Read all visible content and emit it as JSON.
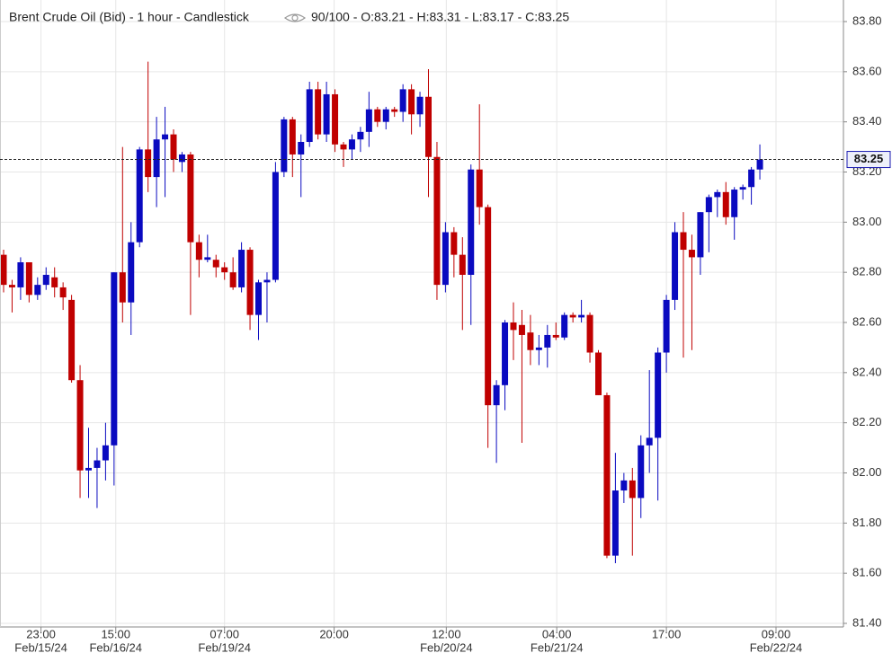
{
  "chart_data": {
    "type": "candlestick",
    "title": "Brent Crude Oil (Bid) - 1 hour - Candlestick",
    "subtitle": "90/100 - O:83.21 - H:83.31 - L:83.17 - C:83.25",
    "up_color": "#0a0ac0",
    "down_color": "#c00000",
    "grid": true,
    "open": [
      82.87,
      82.75,
      82.74,
      82.84,
      82.71,
      82.75,
      82.78,
      82.74,
      82.69,
      82.37,
      82.01,
      82.02,
      82.05,
      82.11,
      82.8,
      82.68,
      82.92,
      83.29,
      83.18,
      83.33,
      83.35,
      83.24,
      83.27,
      82.92,
      82.85,
      82.85,
      82.82,
      82.8,
      82.74,
      82.89,
      82.63,
      82.76,
      82.77,
      83.2,
      83.41,
      83.27,
      83.32,
      83.53,
      83.35,
      83.51,
      83.31,
      83.29,
      83.33,
      83.36,
      83.45,
      83.4,
      83.45,
      83.44,
      83.53,
      83.43,
      83.5,
      83.26,
      82.75,
      82.96,
      82.87,
      82.79,
      83.21,
      83.06,
      82.27,
      82.35,
      82.6,
      82.59,
      82.56,
      82.49,
      82.5,
      82.55,
      82.54,
      82.63,
      82.62,
      82.63,
      82.48,
      82.31,
      81.67,
      81.93,
      81.97,
      81.9,
      82.11,
      82.14,
      82.48,
      82.69,
      82.96,
      82.89,
      82.86,
      83.04,
      83.1,
      83.12,
      83.02,
      83.13,
      83.14,
      83.21
    ],
    "high": [
      82.89,
      82.77,
      82.86,
      82.84,
      82.78,
      82.82,
      82.82,
      82.76,
      82.71,
      82.43,
      82.18,
      82.1,
      82.2,
      82.8,
      83.3,
      83.0,
      83.3,
      83.64,
      83.42,
      83.46,
      83.37,
      83.28,
      83.28,
      82.95,
      82.95,
      82.87,
      82.84,
      82.86,
      82.92,
      82.9,
      82.77,
      82.8,
      83.24,
      83.42,
      83.42,
      83.35,
      83.56,
      83.56,
      83.56,
      83.53,
      83.32,
      83.35,
      83.38,
      83.52,
      83.46,
      83.46,
      83.46,
      83.55,
      83.55,
      83.52,
      83.61,
      83.32,
      83.0,
      82.98,
      82.94,
      83.23,
      83.47,
      83.07,
      82.37,
      82.61,
      82.68,
      82.65,
      82.63,
      82.55,
      82.59,
      82.6,
      82.64,
      82.64,
      82.69,
      82.64,
      82.49,
      82.32,
      82.08,
      82.0,
      82.02,
      82.15,
      82.41,
      82.5,
      82.71,
      83.0,
      83.04,
      82.95,
      83.04,
      83.11,
      83.13,
      83.16,
      83.14,
      83.15,
      83.22,
      83.31
    ],
    "low": [
      82.72,
      82.64,
      82.69,
      82.68,
      82.69,
      82.73,
      82.7,
      82.65,
      82.36,
      81.9,
      81.9,
      81.86,
      81.97,
      81.95,
      82.6,
      82.55,
      82.9,
      83.12,
      83.06,
      83.1,
      83.2,
      83.2,
      82.63,
      82.78,
      82.84,
      82.78,
      82.77,
      82.73,
      82.72,
      82.57,
      82.53,
      82.6,
      82.76,
      83.18,
      83.18,
      83.1,
      83.3,
      83.33,
      83.32,
      83.28,
      83.22,
      83.25,
      83.28,
      83.3,
      83.38,
      83.37,
      83.42,
      83.4,
      83.35,
      83.38,
      83.1,
      82.69,
      82.72,
      82.78,
      82.57,
      82.59,
      82.99,
      82.1,
      82.04,
      82.25,
      82.45,
      82.12,
      82.43,
      82.43,
      82.42,
      82.53,
      82.53,
      82.6,
      82.6,
      82.44,
      82.31,
      81.66,
      81.64,
      81.88,
      81.67,
      81.82,
      82.0,
      81.89,
      82.4,
      82.65,
      82.46,
      82.49,
      82.79,
      82.88,
      83.02,
      82.99,
      82.93,
      83.09,
      83.07,
      83.17
    ],
    "close": [
      82.75,
      82.74,
      82.84,
      82.71,
      82.75,
      82.79,
      82.74,
      82.7,
      82.37,
      82.01,
      82.02,
      82.05,
      82.11,
      82.8,
      82.68,
      82.92,
      83.29,
      83.18,
      83.33,
      83.35,
      83.25,
      83.27,
      82.92,
      82.85,
      82.86,
      82.82,
      82.8,
      82.74,
      82.89,
      82.63,
      82.76,
      82.77,
      83.2,
      83.41,
      83.27,
      83.32,
      83.53,
      83.35,
      83.51,
      83.31,
      83.29,
      83.33,
      83.36,
      83.45,
      83.4,
      83.45,
      83.44,
      83.53,
      83.43,
      83.5,
      83.26,
      82.75,
      82.96,
      82.87,
      82.79,
      83.21,
      83.06,
      82.27,
      82.35,
      82.6,
      82.57,
      82.55,
      82.49,
      82.5,
      82.55,
      82.54,
      82.63,
      82.62,
      82.63,
      82.48,
      82.31,
      81.67,
      81.93,
      81.97,
      81.9,
      82.11,
      82.14,
      82.48,
      82.69,
      82.96,
      82.89,
      82.86,
      83.04,
      83.1,
      83.12,
      83.02,
      83.13,
      83.14,
      83.21,
      83.25
    ],
    "last_price": {
      "value": 83.25,
      "label": "83.25"
    },
    "ylim": [
      81.4,
      83.886
    ],
    "yticks": [
      {
        "value": 81.4,
        "label": "81.40"
      },
      {
        "value": 81.6,
        "label": "81.60"
      },
      {
        "value": 81.8,
        "label": "81.80"
      },
      {
        "value": 82.0,
        "label": "82.00"
      },
      {
        "value": 82.2,
        "label": "82.20"
      },
      {
        "value": 82.4,
        "label": "82.40"
      },
      {
        "value": 82.6,
        "label": "82.60"
      },
      {
        "value": 82.8,
        "label": "82.80"
      },
      {
        "value": 83.0,
        "label": "83.00"
      },
      {
        "value": 83.2,
        "label": "83.20"
      },
      {
        "value": 83.4,
        "label": "83.40"
      },
      {
        "value": 83.6,
        "label": "83.60"
      },
      {
        "value": 83.8,
        "label": "83.80"
      }
    ],
    "xticks": [
      {
        "value": 4.4,
        "label": "23:00"
      },
      {
        "value": 13.2,
        "label": "15:00"
      },
      {
        "value": 26.0,
        "label": "07:00"
      },
      {
        "value": 38.9,
        "label": "20:00"
      },
      {
        "value": 52.1,
        "label": "12:00"
      },
      {
        "value": 65.1,
        "label": "04:00"
      },
      {
        "value": 78.0,
        "label": "17:00"
      },
      {
        "value": 90.9,
        "label": "09:00"
      }
    ],
    "xdate_ticks": [
      {
        "value": 4.4,
        "label": "Feb/15/24"
      },
      {
        "value": 13.2,
        "label": "Feb/16/24"
      },
      {
        "value": 26.0,
        "label": "Feb/19/24"
      },
      {
        "value": 52.1,
        "label": "Feb/20/24"
      },
      {
        "value": 65.1,
        "label": "Feb/21/24"
      },
      {
        "value": 90.9,
        "label": "Feb/22/24"
      }
    ]
  }
}
